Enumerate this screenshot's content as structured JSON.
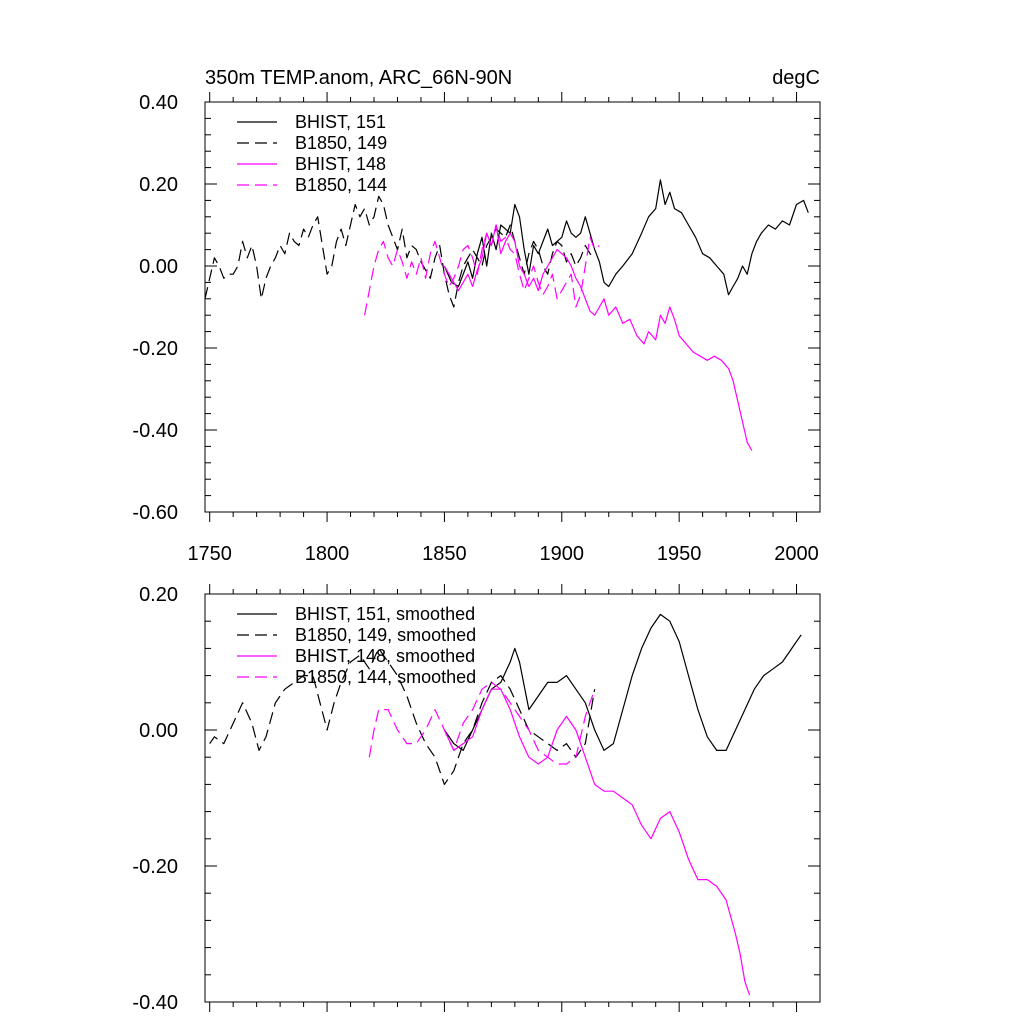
{
  "chart_data": [
    {
      "type": "line",
      "title": "350m TEMP.anom, ARC_66N-90N",
      "units": "degC",
      "xlim": [
        1748,
        2010
      ],
      "ylim": [
        -0.6,
        0.4
      ],
      "yticks": [
        -0.6,
        -0.4,
        -0.2,
        0.0,
        0.2,
        0.4
      ],
      "ytick_labels": [
        "-0.60",
        "-0.40",
        "-0.20",
        "0.00",
        "0.20",
        "0.40"
      ],
      "xticks": [
        1750,
        1800,
        1850,
        1900,
        1950,
        2000
      ],
      "xtick_labels": [
        "1750",
        "1800",
        "1850",
        "1900",
        "1950",
        "2000"
      ],
      "legend_position": "top-left",
      "series": [
        {
          "name": "BHIST, 151",
          "color": "#000000",
          "dash": "solid",
          "x": [
            1850,
            1853,
            1856,
            1858,
            1860,
            1862,
            1864,
            1866,
            1868,
            1870,
            1872,
            1874,
            1876,
            1878,
            1880,
            1882,
            1884,
            1886,
            1888,
            1890,
            1892,
            1894,
            1896,
            1898,
            1900,
            1902,
            1904,
            1906,
            1908,
            1910,
            1912,
            1914,
            1916,
            1918,
            1920,
            1923,
            1926,
            1930,
            1934,
            1937,
            1940,
            1942,
            1944,
            1946,
            1948,
            1951,
            1954,
            1957,
            1960,
            1963,
            1966,
            1969,
            1971,
            1973,
            1975,
            1977,
            1979,
            1981,
            1983,
            1985,
            1988,
            1991,
            1994,
            1997,
            2000,
            2003,
            2005
          ],
          "y": [
            0.0,
            -0.04,
            -0.05,
            -0.02,
            0.01,
            -0.03,
            0.03,
            0.07,
            0.0,
            0.08,
            0.04,
            0.1,
            0.09,
            0.08,
            0.15,
            0.12,
            0.04,
            -0.02,
            0.05,
            0.03,
            0.06,
            0.09,
            0.05,
            0.06,
            0.07,
            0.11,
            0.08,
            0.07,
            0.08,
            0.12,
            0.08,
            0.04,
            0.01,
            -0.04,
            -0.05,
            -0.02,
            0.0,
            0.03,
            0.08,
            0.12,
            0.14,
            0.21,
            0.15,
            0.18,
            0.14,
            0.13,
            0.1,
            0.07,
            0.03,
            0.02,
            0.0,
            -0.02,
            -0.07,
            -0.05,
            -0.03,
            0.0,
            -0.02,
            0.03,
            0.06,
            0.08,
            0.1,
            0.09,
            0.11,
            0.1,
            0.15,
            0.16,
            0.13
          ]
        },
        {
          "name": "B1850, 149",
          "color": "#000000",
          "dash": "dashed",
          "x": [
            1748,
            1750,
            1752,
            1754,
            1756,
            1758,
            1760,
            1762,
            1764,
            1766,
            1768,
            1770,
            1772,
            1774,
            1776,
            1778,
            1780,
            1782,
            1784,
            1786,
            1788,
            1790,
            1792,
            1794,
            1796,
            1798,
            1800,
            1802,
            1804,
            1806,
            1808,
            1810,
            1812,
            1814,
            1816,
            1818,
            1820,
            1822,
            1824,
            1826,
            1828,
            1830,
            1832,
            1834,
            1836,
            1838,
            1840,
            1842,
            1844,
            1846,
            1848,
            1850,
            1852,
            1854,
            1856,
            1858,
            1860,
            1862,
            1864,
            1866,
            1868,
            1870,
            1872,
            1874,
            1876,
            1878,
            1880,
            1882,
            1884,
            1886,
            1888,
            1890,
            1892,
            1894,
            1896,
            1898,
            1900,
            1902,
            1904,
            1906,
            1908,
            1910,
            1912,
            1914
          ],
          "y": [
            -0.08,
            -0.03,
            0.02,
            0.0,
            -0.03,
            -0.02,
            -0.02,
            0.0,
            0.06,
            0.02,
            0.05,
            0.0,
            -0.08,
            -0.03,
            0.0,
            0.02,
            0.05,
            0.03,
            0.08,
            0.06,
            0.05,
            0.09,
            0.07,
            0.1,
            0.12,
            0.05,
            -0.02,
            0.0,
            0.06,
            0.09,
            0.05,
            0.1,
            0.15,
            0.12,
            0.14,
            0.1,
            0.12,
            0.17,
            0.15,
            0.1,
            0.07,
            0.04,
            0.09,
            0.02,
            0.05,
            0.04,
            0.01,
            -0.01,
            -0.03,
            0.02,
            0.05,
            -0.02,
            -0.07,
            -0.1,
            -0.04,
            0.0,
            0.02,
            0.04,
            0.02,
            0.0,
            0.05,
            0.07,
            0.09,
            0.08,
            0.07,
            0.1,
            0.06,
            0.02,
            -0.02,
            0.03,
            0.06,
            0.04,
            0.0,
            -0.02,
            0.03,
            0.06,
            0.05,
            0.01,
            0.03,
            0.0,
            0.02,
            0.05,
            0.03,
            0.02
          ]
        },
        {
          "name": "BHIST, 148",
          "color": "#ff00ff",
          "dash": "solid",
          "x": [
            1850,
            1853,
            1856,
            1858,
            1860,
            1862,
            1864,
            1866,
            1868,
            1870,
            1872,
            1874,
            1876,
            1878,
            1880,
            1882,
            1884,
            1886,
            1888,
            1890,
            1892,
            1894,
            1896,
            1898,
            1900,
            1902,
            1904,
            1906,
            1908,
            1910,
            1912,
            1914,
            1916,
            1918,
            1920,
            1923,
            1926,
            1929,
            1932,
            1935,
            1937,
            1940,
            1942,
            1944,
            1946,
            1948,
            1950,
            1953,
            1956,
            1959,
            1962,
            1965,
            1968,
            1971,
            1973,
            1975,
            1977,
            1979,
            1981
          ],
          "y": [
            0.0,
            -0.03,
            -0.06,
            -0.04,
            -0.02,
            -0.05,
            -0.01,
            0.02,
            0.08,
            0.05,
            0.1,
            0.03,
            0.06,
            0.08,
            0.06,
            0.0,
            -0.02,
            -0.05,
            -0.03,
            -0.06,
            -0.02,
            0.0,
            0.02,
            0.04,
            0.03,
            0.02,
            0.0,
            -0.03,
            -0.05,
            -0.08,
            -0.11,
            -0.12,
            -0.1,
            -0.08,
            -0.12,
            -0.1,
            -0.14,
            -0.13,
            -0.17,
            -0.19,
            -0.16,
            -0.18,
            -0.12,
            -0.14,
            -0.1,
            -0.13,
            -0.17,
            -0.19,
            -0.21,
            -0.22,
            -0.23,
            -0.22,
            -0.23,
            -0.25,
            -0.28,
            -0.33,
            -0.38,
            -0.43,
            -0.45
          ]
        },
        {
          "name": "B1850, 144",
          "color": "#ff00ff",
          "dash": "dashed",
          "x": [
            1816,
            1818,
            1820,
            1822,
            1824,
            1826,
            1828,
            1830,
            1832,
            1834,
            1836,
            1838,
            1840,
            1842,
            1844,
            1846,
            1848,
            1850,
            1852,
            1854,
            1856,
            1858,
            1860,
            1862,
            1864,
            1866,
            1868,
            1870,
            1872,
            1874,
            1876,
            1878,
            1880,
            1882,
            1884,
            1886,
            1888,
            1890,
            1892,
            1894,
            1896,
            1898,
            1900,
            1902,
            1904,
            1906,
            1908,
            1910,
            1912,
            1914,
            1916
          ],
          "y": [
            -0.12,
            -0.06,
            0.0,
            0.04,
            0.06,
            0.02,
            0.0,
            0.04,
            0.01,
            -0.03,
            0.01,
            -0.02,
            0.02,
            -0.03,
            0.03,
            0.06,
            0.02,
            -0.02,
            -0.05,
            -0.03,
            0.0,
            0.04,
            0.05,
            0.02,
            -0.02,
            0.04,
            0.08,
            0.05,
            0.1,
            0.06,
            0.07,
            0.04,
            0.03,
            -0.02,
            -0.06,
            -0.03,
            0.0,
            -0.04,
            -0.07,
            -0.05,
            -0.02,
            -0.08,
            -0.06,
            -0.04,
            -0.02,
            -0.1,
            -0.07,
            0.0,
            0.07,
            0.04,
            0.05
          ]
        }
      ]
    },
    {
      "type": "line",
      "title": "",
      "xlim": [
        1748,
        2010
      ],
      "ylim": [
        -0.4,
        0.2
      ],
      "yticks": [
        -0.4,
        -0.2,
        0.0,
        0.2
      ],
      "ytick_labels": [
        "-0.40",
        "-0.20",
        "0.00",
        "0.20"
      ],
      "xticks": [
        1750,
        1800,
        1850,
        1900,
        1950,
        2000
      ],
      "xtick_labels": [],
      "legend_position": "top-left",
      "series": [
        {
          "name": "BHIST, 151, smoothed",
          "color": "#000000",
          "dash": "solid",
          "x": [
            1850,
            1854,
            1858,
            1862,
            1866,
            1870,
            1874,
            1878,
            1880,
            1882,
            1886,
            1890,
            1894,
            1898,
            1902,
            1906,
            1910,
            1914,
            1918,
            1922,
            1926,
            1930,
            1934,
            1938,
            1942,
            1946,
            1950,
            1954,
            1958,
            1962,
            1966,
            1970,
            1974,
            1978,
            1982,
            1986,
            1990,
            1994,
            1998,
            2002
          ],
          "y": [
            0.0,
            -0.02,
            -0.03,
            0.0,
            0.03,
            0.06,
            0.07,
            0.1,
            0.12,
            0.1,
            0.03,
            0.05,
            0.07,
            0.07,
            0.08,
            0.06,
            0.04,
            0.0,
            -0.03,
            -0.02,
            0.03,
            0.08,
            0.12,
            0.15,
            0.17,
            0.16,
            0.13,
            0.08,
            0.03,
            -0.01,
            -0.03,
            -0.03,
            0.0,
            0.03,
            0.06,
            0.08,
            0.09,
            0.1,
            0.12,
            0.14
          ]
        },
        {
          "name": "B1850, 149, smoothed",
          "color": "#000000",
          "dash": "dashed",
          "x": [
            1750,
            1752,
            1756,
            1760,
            1764,
            1768,
            1771,
            1774,
            1778,
            1782,
            1786,
            1790,
            1794,
            1797,
            1800,
            1803,
            1806,
            1810,
            1814,
            1818,
            1822,
            1826,
            1830,
            1834,
            1838,
            1842,
            1846,
            1850,
            1854,
            1858,
            1862,
            1866,
            1870,
            1874,
            1878,
            1882,
            1886,
            1890,
            1894,
            1898,
            1902,
            1906,
            1910,
            1914
          ],
          "y": [
            -0.02,
            -0.01,
            -0.02,
            0.01,
            0.04,
            0.01,
            -0.03,
            -0.01,
            0.04,
            0.06,
            0.07,
            0.08,
            0.08,
            0.04,
            0.0,
            0.04,
            0.07,
            0.1,
            0.11,
            0.09,
            0.12,
            0.1,
            0.08,
            0.05,
            0.01,
            -0.02,
            -0.04,
            -0.08,
            -0.06,
            -0.02,
            0.0,
            0.04,
            0.07,
            0.08,
            0.06,
            0.03,
            0.0,
            -0.01,
            -0.02,
            -0.03,
            -0.02,
            -0.04,
            -0.02,
            0.06
          ]
        },
        {
          "name": "BHIST, 148, smoothed",
          "color": "#ff00ff",
          "dash": "solid",
          "x": [
            1850,
            1854,
            1858,
            1862,
            1866,
            1870,
            1874,
            1878,
            1882,
            1886,
            1890,
            1894,
            1898,
            1902,
            1906,
            1910,
            1914,
            1918,
            1922,
            1926,
            1930,
            1934,
            1938,
            1942,
            1946,
            1950,
            1954,
            1958,
            1962,
            1966,
            1970,
            1974,
            1976,
            1978,
            1980
          ],
          "y": [
            0.0,
            -0.03,
            -0.02,
            -0.01,
            0.03,
            0.06,
            0.06,
            0.03,
            -0.01,
            -0.04,
            -0.05,
            -0.04,
            0.0,
            0.02,
            0.0,
            -0.04,
            -0.08,
            -0.09,
            -0.09,
            -0.1,
            -0.11,
            -0.14,
            -0.16,
            -0.13,
            -0.12,
            -0.15,
            -0.19,
            -0.22,
            -0.22,
            -0.23,
            -0.25,
            -0.3,
            -0.33,
            -0.37,
            -0.39
          ]
        },
        {
          "name": "B1850, 144, smoothed",
          "color": "#ff00ff",
          "dash": "dashed",
          "x": [
            1818,
            1820,
            1822,
            1826,
            1830,
            1834,
            1838,
            1842,
            1846,
            1850,
            1854,
            1858,
            1862,
            1866,
            1870,
            1874,
            1878,
            1882,
            1886,
            1890,
            1894,
            1898,
            1902,
            1906,
            1910,
            1914
          ],
          "y": [
            -0.04,
            0.0,
            0.03,
            0.03,
            0.0,
            -0.02,
            -0.02,
            0.0,
            0.03,
            0.0,
            -0.03,
            0.01,
            0.03,
            0.06,
            0.07,
            0.06,
            0.04,
            0.02,
            0.0,
            -0.03,
            -0.04,
            -0.05,
            -0.05,
            -0.04,
            0.02,
            0.06
          ]
        }
      ]
    }
  ]
}
